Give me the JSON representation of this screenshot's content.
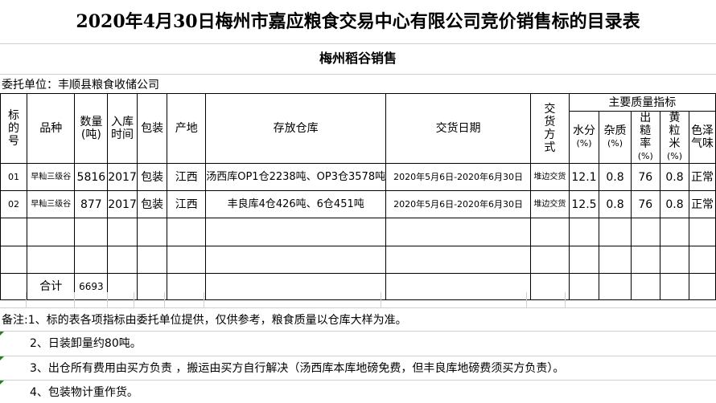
{
  "title": "2020年4月30日梅州市嘉应粮食交易中心有限公司竞价销售标的目录表",
  "subtitle": "梅州稻谷销售",
  "client": "委托单位：丰顺县粮食收储公司",
  "headers": {
    "lot_no": "标的号",
    "variety": "品种",
    "quantity": "数量(吨)",
    "storage_year": "入库时间",
    "packaging": "包装",
    "origin": "产地",
    "warehouse": "存放仓库",
    "delivery_date": "交货日期",
    "delivery_method": "交货方式",
    "quality_group": "主要质量指标",
    "moisture": "水分",
    "impurity": "杂质",
    "husked_rate": "出糙率",
    "yellow_rice": "黄粒米",
    "color_odor": "色泽气味",
    "pct": "(%)"
  },
  "rows": [
    {
      "lot_no": "01",
      "variety": "早籼三级谷",
      "quantity": "5816",
      "storage_year": "2017",
      "packaging": "包装",
      "origin": "江西",
      "warehouse": "汤西库OP1仓2238吨、OP3仓3578吨",
      "delivery_date": "2020年5月6日-2020年6月30日",
      "delivery_method": "堆边交货",
      "moisture": "12.1",
      "impurity": "0.8",
      "husked_rate": "76",
      "yellow_rice": "0.8",
      "color_odor": "正常"
    },
    {
      "lot_no": "02",
      "variety": "早籼三级谷",
      "quantity": "877",
      "storage_year": "2017",
      "packaging": "包装",
      "origin": "江西",
      "warehouse": "丰良库4仓426吨、6仓451吨",
      "delivery_date": "2020年5月6日-2020年6月30日",
      "delivery_method": "堆边交货",
      "moisture": "12.5",
      "impurity": "0.8",
      "husked_rate": "76",
      "yellow_rice": "0.8",
      "color_odor": "正常"
    }
  ],
  "total": {
    "label": "合计",
    "quantity": "6693"
  },
  "notes": [
    "备注:1、标的表各项指标由委托单位提供，仅供参考，粮食质量以仓库大样为准。",
    "2、日装卸量约80吨。",
    "3、出仓所有费用由买方负责 ，搬运由买方自行解决（汤西库本库地磅免费，但丰良库地磅费须买方负责）。",
    "4、包装物计重作货。"
  ]
}
